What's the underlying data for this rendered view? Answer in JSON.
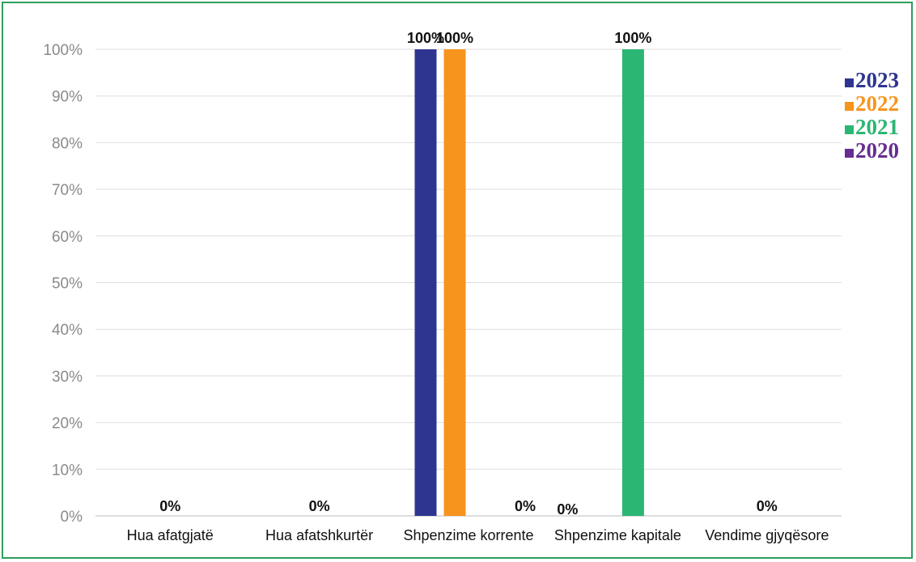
{
  "chart_data": {
    "type": "bar",
    "title": "",
    "xlabel": "",
    "ylabel": "",
    "ylim": [
      0,
      100
    ],
    "y_ticks": [
      "0%",
      "10%",
      "20%",
      "30%",
      "40%",
      "50%",
      "60%",
      "70%",
      "80%",
      "90%",
      "100%"
    ],
    "grid": true,
    "legend_position": "right",
    "categories": [
      "Hua afatgjatë",
      "Hua afatshkurtër",
      "Shpenzime korrente",
      "Shpenzime kapitale",
      "Vendime gjyqësore"
    ],
    "series": [
      {
        "name": "2023",
        "color": "#2e3590",
        "values": [
          0,
          0,
          100,
          0,
          0
        ]
      },
      {
        "name": "2022",
        "color": "#f7941d",
        "values": [
          0,
          0,
          100,
          0,
          0
        ]
      },
      {
        "name": "2021",
        "color": "#2bb673",
        "values": [
          0,
          0,
          0,
          100,
          0
        ]
      },
      {
        "name": "2020",
        "color": "#662d91",
        "values": [
          0,
          0,
          0,
          0,
          0
        ]
      }
    ],
    "data_labels": [
      {
        "category_index": 0,
        "text": "0%"
      },
      {
        "category_index": 1,
        "text": "0%"
      },
      {
        "category_index": 2,
        "series_index": 0,
        "text": "100%"
      },
      {
        "category_index": 2,
        "series_index": 1,
        "text": "100%"
      },
      {
        "category_index": 2,
        "text": "0%"
      },
      {
        "category_index": 3,
        "text": "0%"
      },
      {
        "category_index": 3,
        "series_index": 2,
        "text": "100%"
      },
      {
        "category_index": 4,
        "text": "0%"
      }
    ]
  }
}
